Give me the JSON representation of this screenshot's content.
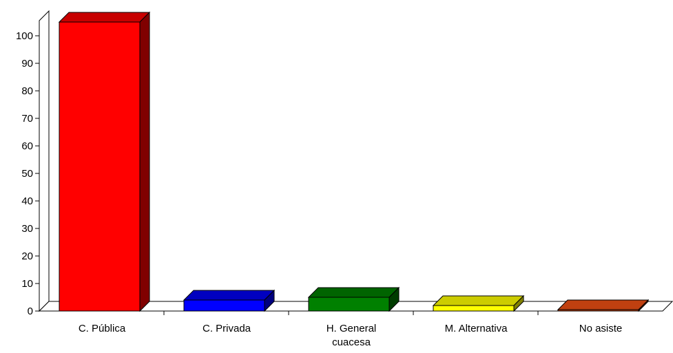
{
  "chart_data": {
    "type": "bar",
    "categories": [
      [
        "C. Pública"
      ],
      [
        "C. Privada"
      ],
      [
        "H. General",
        "cuacesa"
      ],
      [
        "M. Alternativa"
      ],
      [
        "No asiste"
      ]
    ],
    "values": [
      105,
      4,
      5,
      2,
      0.5
    ],
    "colors": [
      {
        "front": "#ff0000",
        "top": "#c80000",
        "side": "#800000"
      },
      {
        "front": "#0000ff",
        "top": "#0000c0",
        "side": "#000080"
      },
      {
        "front": "#008000",
        "top": "#006400",
        "side": "#003c00"
      },
      {
        "front": "#ffff00",
        "top": "#cccc00",
        "side": "#808000"
      },
      {
        "front": "#c04010",
        "top": "#c04010",
        "side": "#803010"
      }
    ],
    "yticks": [
      0,
      10,
      20,
      30,
      40,
      50,
      60,
      70,
      80,
      90,
      100
    ],
    "ylim": [
      0,
      105
    ],
    "title": "",
    "xlabel": "",
    "ylabel": "",
    "grid": false
  }
}
